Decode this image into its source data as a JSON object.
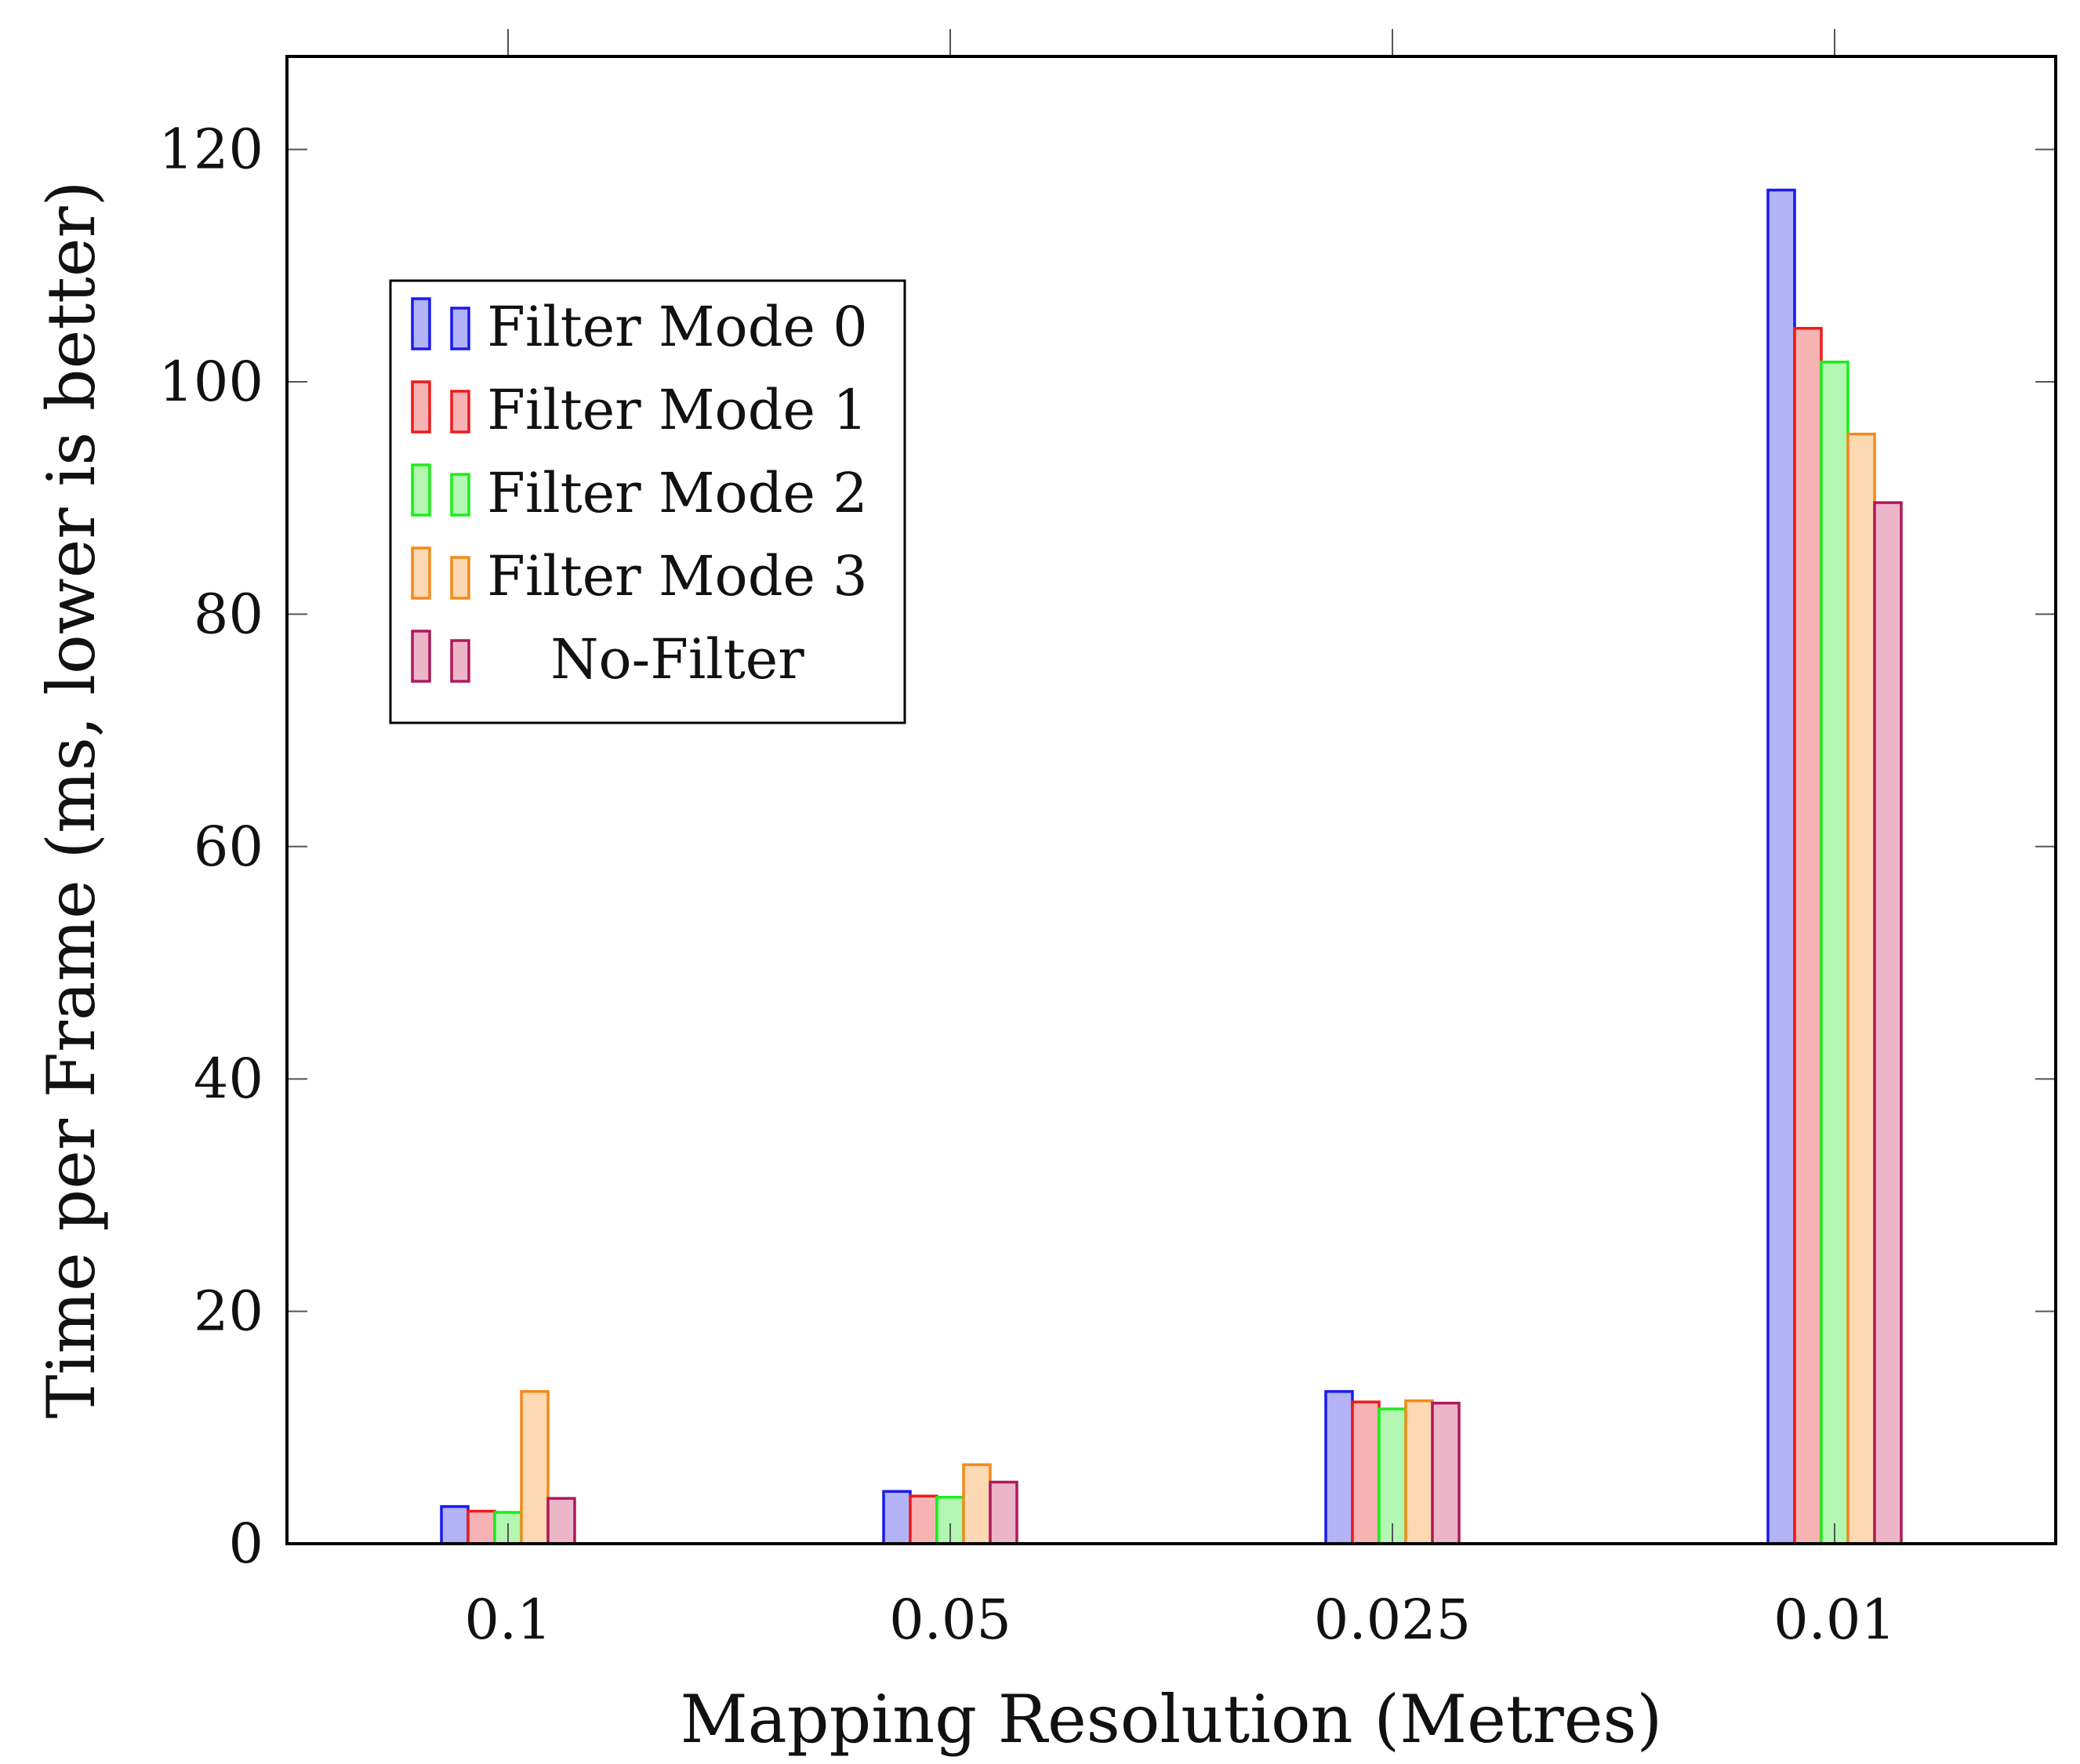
{
  "chart_data": {
    "type": "bar",
    "title": "",
    "xlabel": "Mapping Resolution (Metres)",
    "ylabel": "Time per Frame (ms, lower is better)",
    "categories": [
      "0.1",
      "0.05",
      "0.025",
      "0.01"
    ],
    "ylim": [
      0,
      128
    ],
    "yticks": [
      "0",
      "20",
      "40",
      "60",
      "80",
      "100",
      "120"
    ],
    "grid": false,
    "legend_position": "top-left",
    "series": [
      {
        "name": "Filter Mode 0",
        "stroke": "#1a1aee",
        "fill": "#b3b3f7",
        "values": [
          3.2,
          4.5,
          13.1,
          116.5
        ]
      },
      {
        "name": "Filter Mode 1",
        "stroke": "#ee1a1a",
        "fill": "#f7b3b3",
        "values": [
          2.8,
          4.1,
          12.2,
          104.6
        ]
      },
      {
        "name": "Filter Mode 2",
        "stroke": "#1aee1a",
        "fill": "#b3f7b3",
        "values": [
          2.7,
          4.0,
          11.6,
          101.7
        ]
      },
      {
        "name": "Filter Mode 3",
        "stroke": "#f28a1a",
        "fill": "#fcd9b3",
        "values": [
          13.1,
          6.8,
          12.3,
          95.5
        ]
      },
      {
        "name": "No-Filter",
        "stroke": "#b0185a",
        "fill": "#edb6c8",
        "values": [
          3.9,
          5.3,
          12.1,
          89.6
        ]
      }
    ]
  }
}
